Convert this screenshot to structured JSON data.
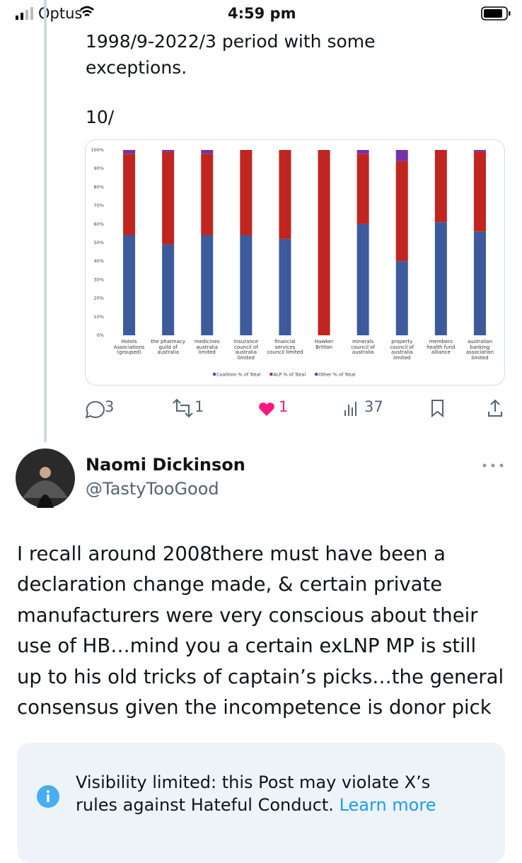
{
  "status_bar": {
    "carrier": "Optus",
    "time": "4:59 pm"
  },
  "post": {
    "text_lines": [
      "1998/9-2022/3 period with some",
      "exceptions."
    ],
    "thread_label": "10/"
  },
  "chart_data": {
    "type": "stacked_bar",
    "categories": [
      "Hotels\nAssociations\n(grouped)",
      "the pharmacy\nguild of\naustralia",
      "medicines\naustralia\nlimited",
      "insurance\ncouncil of\naustralia\nlimited",
      "financial\nservices\ncouncil limited",
      "Hawker\nBritton",
      "minerals\ncouncil of\naustralia",
      "property\ncouncil of\naustralia\nlimited",
      "members\nhealth fund\nalliance",
      "australian\nbanking\nassociation\nlimited"
    ],
    "series": [
      {
        "name": "Coalition % of Total",
        "color": "#3c5a9c",
        "values": [
          54,
          49,
          54,
          54,
          52,
          0,
          60,
          40,
          61,
          56
        ]
      },
      {
        "name": "ALP % of Total",
        "color": "#c12520",
        "values": [
          44,
          50,
          44,
          46,
          48,
          100,
          38,
          54,
          39,
          43
        ]
      },
      {
        "name": "Other % of Total",
        "color": "#7433a8",
        "values": [
          2,
          1,
          2,
          0,
          0,
          0,
          2,
          6,
          0,
          1
        ]
      }
    ],
    "ylim": [
      0,
      100
    ],
    "yticks": [
      {
        "value": 0,
        "label": "0%"
      },
      {
        "value": 10,
        "label": "10%"
      },
      {
        "value": 20,
        "label": "20%"
      },
      {
        "value": 30,
        "label": "30%"
      },
      {
        "value": 40,
        "label": "40%"
      },
      {
        "value": 50,
        "label": "50%"
      },
      {
        "value": 60,
        "label": "60%"
      },
      {
        "value": 70,
        "label": "70%"
      },
      {
        "value": 80,
        "label": "80%"
      },
      {
        "value": 90,
        "label": "90%"
      },
      {
        "value": 100,
        "label": "100%"
      }
    ],
    "grid": false,
    "legend": "bottom"
  },
  "actions": {
    "replies": 3,
    "reposts": 1,
    "likes": 1,
    "views": 37
  },
  "reply": {
    "name": "Naomi Dickinson",
    "handle": "@TastyTooGood",
    "text_lines": [
      "I recall around 2008there must have been a",
      "declaration change made, & certain private",
      "manufacturers were very conscious about their",
      "use of HB…mind you a certain exLNP MP is still",
      "up to his old tricks of captain’s picks…the general",
      "consensus given the incompetence is donor pick"
    ]
  },
  "notice": {
    "text_lines": [
      "Visibility limited: this Post may violate X’s",
      "rules against Hateful Conduct."
    ],
    "link": "Learn more"
  }
}
